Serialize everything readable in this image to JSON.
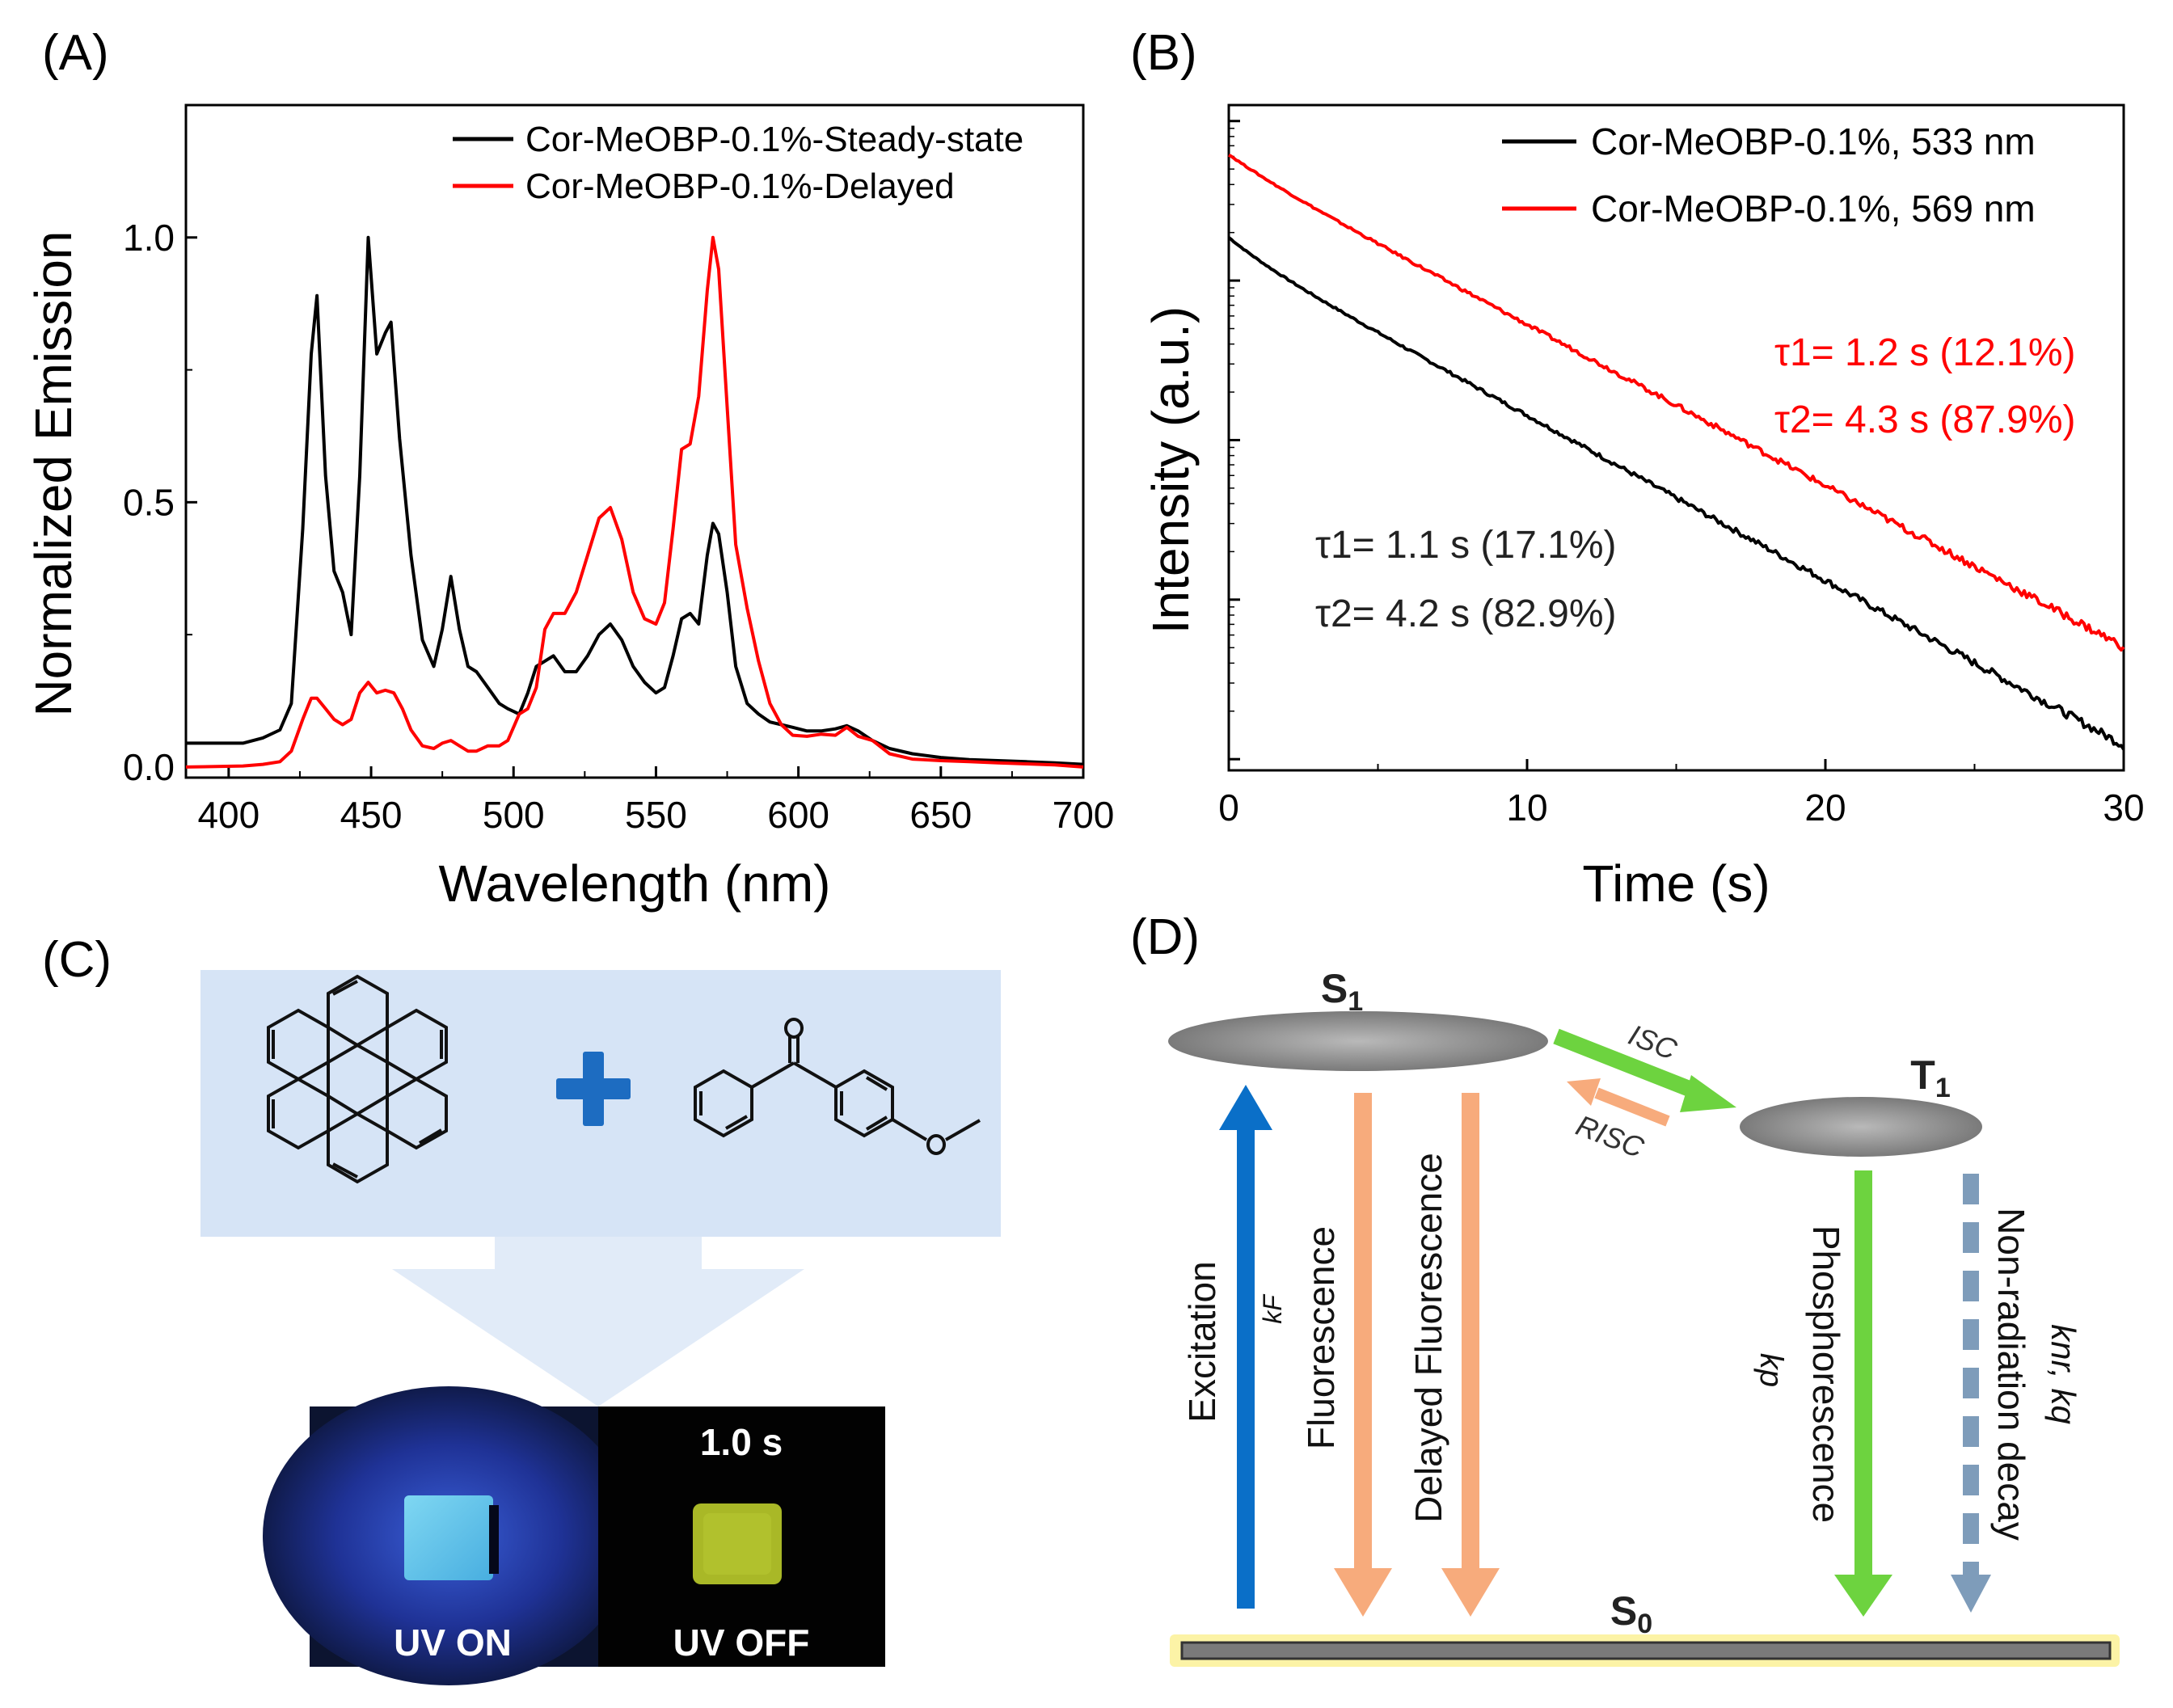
{
  "panels": {
    "a": "(A)",
    "b": "(B)",
    "c": "(C)",
    "d": "(D)"
  },
  "colors": {
    "black": "#000000",
    "red": "#ff0000",
    "blue": "#0a6fc8",
    "orange": "#f7ab7c",
    "green": "#6dd33f",
    "steel": "#7e9cba"
  },
  "chart_data": [
    {
      "type": "line",
      "title": "",
      "xlabel": "Wavelength (nm)",
      "ylabel": "Normalized Emission",
      "xlim": [
        385,
        700
      ],
      "ylim": [
        -0.02,
        1.25
      ],
      "xticks": [
        "400",
        "450",
        "500",
        "550",
        "600",
        "650",
        "700"
      ],
      "yticks": [
        "0.0",
        "0.5",
        "1.0"
      ],
      "legend_position": "top-right",
      "series": [
        {
          "name": "Cor-MeOBP-0.1%-Steady-state",
          "color": "#000000",
          "x": [
            385,
            405,
            412,
            418,
            422,
            426,
            429,
            431,
            434,
            437,
            440,
            443,
            446,
            449,
            452,
            455,
            457,
            460,
            464,
            468,
            472,
            475,
            478,
            481,
            484,
            487,
            491,
            495,
            498,
            502,
            505,
            508,
            511,
            514,
            518,
            522,
            526,
            530,
            534,
            538,
            542,
            546,
            550,
            553,
            556,
            559,
            562,
            565,
            568,
            570,
            572,
            575,
            578,
            582,
            586,
            590,
            594,
            598,
            603,
            608,
            613,
            617,
            621,
            626,
            632,
            640,
            650,
            660,
            670,
            680,
            690,
            700
          ],
          "y": [
            0.045,
            0.045,
            0.055,
            0.07,
            0.12,
            0.45,
            0.78,
            0.89,
            0.55,
            0.37,
            0.33,
            0.25,
            0.55,
            1.0,
            0.78,
            0.82,
            0.84,
            0.62,
            0.4,
            0.24,
            0.19,
            0.26,
            0.36,
            0.26,
            0.19,
            0.18,
            0.15,
            0.12,
            0.11,
            0.1,
            0.14,
            0.19,
            0.2,
            0.21,
            0.18,
            0.18,
            0.21,
            0.25,
            0.27,
            0.24,
            0.19,
            0.16,
            0.14,
            0.15,
            0.21,
            0.28,
            0.29,
            0.27,
            0.4,
            0.46,
            0.44,
            0.33,
            0.19,
            0.12,
            0.1,
            0.085,
            0.08,
            0.075,
            0.068,
            0.068,
            0.072,
            0.078,
            0.068,
            0.05,
            0.035,
            0.025,
            0.018,
            0.014,
            0.012,
            0.01,
            0.008,
            0.005
          ]
        },
        {
          "name": "Cor-MeOBP-0.1%-Delayed",
          "color": "#ff0000",
          "x": [
            385,
            405,
            412,
            418,
            422,
            426,
            429,
            431,
            434,
            437,
            440,
            443,
            446,
            449,
            452,
            455,
            458,
            461,
            464,
            468,
            472,
            475,
            478,
            481,
            484,
            487,
            491,
            495,
            498,
            502,
            505,
            508,
            511,
            514,
            518,
            522,
            526,
            530,
            534,
            538,
            542,
            546,
            550,
            553,
            556,
            559,
            562,
            565,
            568,
            570,
            572,
            575,
            578,
            582,
            586,
            590,
            594,
            598,
            603,
            608,
            613,
            617,
            621,
            626,
            632,
            640,
            650,
            660,
            670,
            680,
            690,
            700
          ],
          "y": [
            0.0,
            0.002,
            0.005,
            0.01,
            0.03,
            0.09,
            0.13,
            0.13,
            0.11,
            0.09,
            0.08,
            0.09,
            0.14,
            0.16,
            0.14,
            0.145,
            0.14,
            0.11,
            0.07,
            0.04,
            0.035,
            0.045,
            0.05,
            0.04,
            0.03,
            0.03,
            0.04,
            0.04,
            0.05,
            0.1,
            0.11,
            0.15,
            0.26,
            0.29,
            0.29,
            0.33,
            0.4,
            0.47,
            0.49,
            0.43,
            0.33,
            0.28,
            0.27,
            0.31,
            0.45,
            0.6,
            0.61,
            0.7,
            0.9,
            1.0,
            0.94,
            0.68,
            0.42,
            0.3,
            0.2,
            0.12,
            0.08,
            0.06,
            0.058,
            0.062,
            0.06,
            0.075,
            0.058,
            0.05,
            0.025,
            0.015,
            0.012,
            0.01,
            0.008,
            0.006,
            0.004,
            0.0
          ]
        }
      ]
    },
    {
      "type": "line",
      "title": "",
      "xlabel": "Time (s)",
      "ylabel": "Intensity (a.u.)",
      "y_scale": "log",
      "xlim": [
        0,
        30
      ],
      "ylim_log10": [
        -4.07,
        0.1
      ],
      "xticks": [
        "0",
        "10",
        "20",
        "30"
      ],
      "legend_position": "top-right",
      "series": [
        {
          "name": "Cor-MeOBP-0.1%, 533 nm",
          "color": "#000000",
          "A1": 0.171,
          "tau1": 1.1,
          "A2": 0.829,
          "tau2": 4.2,
          "y0_log10": -0.73
        },
        {
          "name": "Cor-MeOBP-0.1%, 569 nm",
          "color": "#ff0000",
          "A1": 0.121,
          "tau1": 1.2,
          "A2": 0.879,
          "tau2": 4.3,
          "y0_log10": -0.21
        }
      ],
      "annotations": {
        "red": {
          "tau1": "τ1= 1.2 s (12.1%)",
          "tau2": "τ2= 4.3 s (87.9%)"
        },
        "black": {
          "tau1": "τ1= 1.1 s (17.1%)",
          "tau2": "τ2= 4.2 s (82.9%)"
        }
      }
    }
  ],
  "panel_c": {
    "photo_time": "1.0 s",
    "label_on": "UV ON",
    "label_off": "UV OFF"
  },
  "panel_d": {
    "s1": "S1",
    "t1": "T1",
    "s0": "S0",
    "isc": "ISC",
    "risc": "RISC",
    "excitation": "Excitation",
    "kf": "kF",
    "fluorescence": "Fluorescence",
    "delayed": "Delayed Fluorescence",
    "phosphorescence": "Phosphorescence",
    "kp": "kp",
    "nonrad": "Non-radiation decay",
    "knr": "knr, kq"
  }
}
